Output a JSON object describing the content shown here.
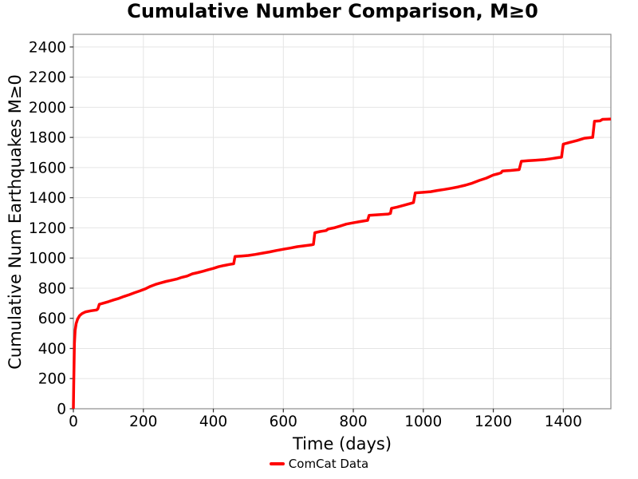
{
  "chart_data": {
    "type": "line",
    "title": "Cumulative Number Comparison, M≥0",
    "xlabel": "Time (days)",
    "ylabel": "Cumulative Num Earthquakes M≥0",
    "xlim": [
      0,
      1536
    ],
    "ylim": [
      0,
      2484
    ],
    "x_ticks": [
      0,
      200,
      400,
      600,
      800,
      1000,
      1200,
      1400
    ],
    "y_ticks": [
      0,
      200,
      400,
      600,
      800,
      1000,
      1200,
      1400,
      1600,
      1800,
      2000,
      2200,
      2400
    ],
    "grid": true,
    "legend_position": "lower center, below x-axis label",
    "series": [
      {
        "name": "ComCat Data",
        "color": "#ff0000",
        "linewidth": 3.5,
        "points": [
          [
            0,
            0
          ],
          [
            1,
            150
          ],
          [
            3,
            430
          ],
          [
            5,
            520
          ],
          [
            8,
            565
          ],
          [
            12,
            595
          ],
          [
            18,
            618
          ],
          [
            25,
            632
          ],
          [
            35,
            643
          ],
          [
            50,
            650
          ],
          [
            66,
            655
          ],
          [
            70,
            662
          ],
          [
            74,
            693
          ],
          [
            85,
            700
          ],
          [
            100,
            710
          ],
          [
            115,
            722
          ],
          [
            130,
            732
          ],
          [
            145,
            745
          ],
          [
            160,
            757
          ],
          [
            175,
            770
          ],
          [
            190,
            782
          ],
          [
            205,
            795
          ],
          [
            220,
            812
          ],
          [
            235,
            825
          ],
          [
            250,
            835
          ],
          [
            265,
            845
          ],
          [
            280,
            852
          ],
          [
            295,
            860
          ],
          [
            310,
            872
          ],
          [
            325,
            880
          ],
          [
            340,
            895
          ],
          [
            355,
            903
          ],
          [
            370,
            912
          ],
          [
            385,
            922
          ],
          [
            400,
            931
          ],
          [
            415,
            942
          ],
          [
            430,
            950
          ],
          [
            445,
            957
          ],
          [
            458,
            962
          ],
          [
            462,
            1010
          ],
          [
            480,
            1013
          ],
          [
            500,
            1017
          ],
          [
            520,
            1024
          ],
          [
            540,
            1032
          ],
          [
            560,
            1040
          ],
          [
            580,
            1050
          ],
          [
            600,
            1058
          ],
          [
            620,
            1066
          ],
          [
            640,
            1075
          ],
          [
            660,
            1081
          ],
          [
            682,
            1088
          ],
          [
            686,
            1090
          ],
          [
            690,
            1168
          ],
          [
            705,
            1176
          ],
          [
            722,
            1182
          ],
          [
            728,
            1192
          ],
          [
            745,
            1200
          ],
          [
            762,
            1212
          ],
          [
            780,
            1225
          ],
          [
            798,
            1233
          ],
          [
            820,
            1242
          ],
          [
            841,
            1250
          ],
          [
            845,
            1283
          ],
          [
            870,
            1287
          ],
          [
            900,
            1292
          ],
          [
            906,
            1296
          ],
          [
            909,
            1330
          ],
          [
            925,
            1338
          ],
          [
            945,
            1350
          ],
          [
            965,
            1363
          ],
          [
            972,
            1368
          ],
          [
            977,
            1432
          ],
          [
            1000,
            1436
          ],
          [
            1021,
            1440
          ],
          [
            1040,
            1448
          ],
          [
            1060,
            1455
          ],
          [
            1080,
            1463
          ],
          [
            1100,
            1472
          ],
          [
            1120,
            1483
          ],
          [
            1140,
            1497
          ],
          [
            1160,
            1515
          ],
          [
            1180,
            1530
          ],
          [
            1200,
            1551
          ],
          [
            1215,
            1560
          ],
          [
            1222,
            1565
          ],
          [
            1226,
            1577
          ],
          [
            1250,
            1581
          ],
          [
            1274,
            1586
          ],
          [
            1280,
            1642
          ],
          [
            1300,
            1646
          ],
          [
            1320,
            1649
          ],
          [
            1347,
            1653
          ],
          [
            1365,
            1659
          ],
          [
            1386,
            1666
          ],
          [
            1395,
            1669
          ],
          [
            1400,
            1755
          ],
          [
            1420,
            1768
          ],
          [
            1440,
            1780
          ],
          [
            1461,
            1795
          ],
          [
            1484,
            1801
          ],
          [
            1489,
            1907
          ],
          [
            1505,
            1910
          ],
          [
            1512,
            1920
          ],
          [
            1536,
            1922
          ]
        ]
      }
    ]
  },
  "colors": {
    "background": "#ffffff",
    "grid": "#e5e5e5",
    "spine": "#909090",
    "tick": "#333333",
    "text": "#000000",
    "red_line": "#ff0000"
  }
}
